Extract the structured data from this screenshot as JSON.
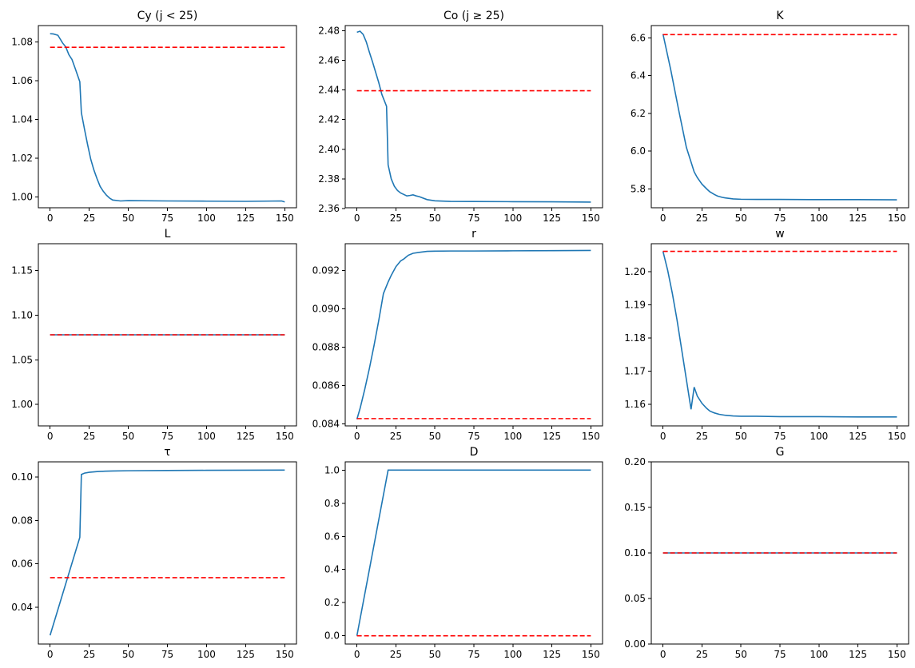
{
  "colors": {
    "series": "#1f77b4",
    "reference": "#ff0000",
    "axes": "#000000",
    "background": "#ffffff"
  },
  "chart_data": [
    {
      "type": "line",
      "title": "Cy (j < 25)",
      "xlim": [
        -7.5,
        157.5
      ],
      "ylim": [
        0.9945,
        1.0885
      ],
      "xticks": [
        0,
        25,
        50,
        75,
        100,
        125,
        150
      ],
      "xtick_labels": [
        "0",
        "25",
        "50",
        "75",
        "100",
        "125",
        "150"
      ],
      "yticks": [
        1.0,
        1.02,
        1.04,
        1.06,
        1.08
      ],
      "ytick_labels": [
        "1.00",
        "1.02",
        "1.04",
        "1.06",
        "1.08"
      ],
      "series": [
        {
          "values": {
            "x": [
              0,
              2,
              5,
              8,
              10,
              12,
              14,
              16,
              19,
              20,
              22,
              24,
              26,
              28,
              30,
              32,
              34,
              36,
              38,
              40,
              45,
              50,
              75,
              100,
              125,
              148,
              150
            ],
            "y": [
              1.0843,
              1.0842,
              1.0835,
              1.0795,
              1.0775,
              1.0735,
              1.071,
              1.0665,
              1.0595,
              1.0435,
              1.035,
              1.027,
              1.0195,
              1.014,
              1.0095,
              1.0055,
              1.003,
              1.001,
              0.9995,
              0.9985,
              0.998,
              0.9982,
              0.998,
              0.9979,
              0.9978,
              0.998,
              0.9975
            ]
          }
        },
        {
          "style": "dashed",
          "values": {
            "x": [
              0,
              150
            ],
            "y": [
              1.0773,
              1.0773
            ]
          }
        }
      ]
    },
    {
      "type": "line",
      "title": "Co (j  ≥  25)",
      "xlim": [
        -7.5,
        157.5
      ],
      "ylim": [
        2.3605,
        2.4835
      ],
      "xticks": [
        0,
        25,
        50,
        75,
        100,
        125,
        150
      ],
      "xtick_labels": [
        "0",
        "25",
        "50",
        "75",
        "100",
        "125",
        "150"
      ],
      "yticks": [
        2.36,
        2.38,
        2.4,
        2.42,
        2.44,
        2.46,
        2.48
      ],
      "ytick_labels": [
        "2.36",
        "2.38",
        "2.40",
        "2.42",
        "2.44",
        "2.46",
        "2.48"
      ],
      "series": [
        {
          "values": {
            "x": [
              0,
              2,
              4,
              6,
              8,
              10,
              12,
              14,
              16,
              19,
              20,
              22,
              24,
              26,
              28,
              30,
              32,
              34,
              36,
              38,
              40,
              45,
              50,
              60,
              75,
              100,
              125,
              150
            ],
            "y": [
              2.479,
              2.4797,
              2.4775,
              2.4725,
              2.4655,
              2.459,
              2.452,
              2.445,
              2.437,
              2.429,
              2.3895,
              2.38,
              2.375,
              2.3722,
              2.3705,
              2.3695,
              2.3685,
              2.3688,
              2.3692,
              2.3685,
              2.368,
              2.366,
              2.3652,
              2.3648,
              2.3647,
              2.3646,
              2.3645,
              2.3643
            ]
          }
        },
        {
          "style": "dashed",
          "values": {
            "x": [
              0,
              150
            ],
            "y": [
              2.4395,
              2.4395
            ]
          }
        }
      ]
    },
    {
      "type": "line",
      "title": "K",
      "xlim": [
        -7.5,
        157.5
      ],
      "ylim": [
        5.7,
        6.665
      ],
      "xticks": [
        0,
        25,
        50,
        75,
        100,
        125,
        150
      ],
      "xtick_labels": [
        "0",
        "25",
        "50",
        "75",
        "100",
        "125",
        "150"
      ],
      "yticks": [
        5.8,
        6.0,
        6.2,
        6.4,
        6.6
      ],
      "ytick_labels": [
        "5.8",
        "6.0",
        "6.2",
        "6.4",
        "6.6"
      ],
      "series": [
        {
          "values": {
            "x": [
              0,
              5,
              10,
              15,
              20,
              22,
              25,
              28,
              30,
              33,
              35,
              38,
              40,
              45,
              50,
              60,
              75,
              100,
              125,
              150
            ],
            "y": [
              6.62,
              6.43,
              6.22,
              6.02,
              5.89,
              5.86,
              5.825,
              5.8,
              5.785,
              5.77,
              5.762,
              5.755,
              5.752,
              5.747,
              5.745,
              5.744,
              5.744,
              5.743,
              5.743,
              5.742
            ]
          }
        },
        {
          "style": "dashed",
          "values": {
            "x": [
              0,
              150
            ],
            "y": [
              6.617,
              6.617
            ]
          }
        }
      ]
    },
    {
      "type": "line",
      "title": "L",
      "xlim": [
        -7.5,
        157.5
      ],
      "ylim": [
        0.976,
        1.18
      ],
      "xticks": [
        0,
        25,
        50,
        75,
        100,
        125,
        150
      ],
      "xtick_labels": [
        "0",
        "25",
        "50",
        "75",
        "100",
        "125",
        "150"
      ],
      "yticks": [
        1.0,
        1.05,
        1.1,
        1.15
      ],
      "ytick_labels": [
        "1.00",
        "1.05",
        "1.10",
        "1.15"
      ],
      "series": [
        {
          "values": {
            "x": [
              0,
              150
            ],
            "y": [
              1.078,
              1.078
            ]
          }
        },
        {
          "style": "dashed",
          "values": {
            "x": [
              0,
              150
            ],
            "y": [
              1.078,
              1.078
            ]
          }
        }
      ]
    },
    {
      "type": "line",
      "title": "r",
      "xlim": [
        -7.5,
        157.5
      ],
      "ylim": [
        0.0839,
        0.0934
      ],
      "xticks": [
        0,
        25,
        50,
        75,
        100,
        125,
        150
      ],
      "xtick_labels": [
        "0",
        "25",
        "50",
        "75",
        "100",
        "125",
        "150"
      ],
      "yticks": [
        0.084,
        0.086,
        0.088,
        0.09,
        0.092
      ],
      "ytick_labels": [
        "0.084",
        "0.086",
        "0.088",
        "0.090",
        "0.092"
      ],
      "series": [
        {
          "values": {
            "x": [
              0,
              2,
              5,
              8,
              11,
              14,
              17,
              20,
              22,
              25,
              28,
              30,
              33,
              36,
              40,
              45,
              50,
              60,
              75,
              100,
              125,
              150
            ],
            "y": [
              0.08425,
              0.0848,
              0.0858,
              0.0869,
              0.0881,
              0.0894,
              0.0908,
              0.0914,
              0.09175,
              0.0922,
              0.0925,
              0.0926,
              0.0928,
              0.0929,
              0.09295,
              0.093,
              0.09301,
              0.09302,
              0.09302,
              0.09303,
              0.09304,
              0.09305
            ]
          }
        },
        {
          "style": "dashed",
          "values": {
            "x": [
              0,
              150
            ],
            "y": [
              0.08428,
              0.08428
            ]
          }
        }
      ]
    },
    {
      "type": "line",
      "title": "w",
      "xlim": [
        -7.5,
        157.5
      ],
      "ylim": [
        1.1535,
        1.2085
      ],
      "xticks": [
        0,
        25,
        50,
        75,
        100,
        125,
        150
      ],
      "xtick_labels": [
        "0",
        "25",
        "50",
        "75",
        "100",
        "125",
        "150"
      ],
      "yticks": [
        1.16,
        1.17,
        1.18,
        1.19,
        1.2
      ],
      "ytick_labels": [
        "1.16",
        "1.17",
        "1.18",
        "1.19",
        "1.20"
      ],
      "series": [
        {
          "values": {
            "x": [
              0,
              3,
              6,
              9,
              12,
              15,
              18,
              20,
              22,
              25,
              28,
              30,
              33,
              36,
              40,
              45,
              50,
              60,
              75,
              100,
              125,
              150
            ],
            "y": [
              1.2062,
              1.2005,
              1.1935,
              1.1855,
              1.1765,
              1.1675,
              1.1585,
              1.1652,
              1.1625,
              1.1603,
              1.1588,
              1.158,
              1.1574,
              1.157,
              1.1567,
              1.1565,
              1.1564,
              1.1564,
              1.1563,
              1.1563,
              1.1562,
              1.1562
            ]
          }
        },
        {
          "style": "dashed",
          "values": {
            "x": [
              0,
              150
            ],
            "y": [
              1.2062,
              1.2062
            ]
          }
        }
      ]
    },
    {
      "type": "line",
      "title": "τ",
      "xlim": [
        -7.5,
        157.5
      ],
      "ylim": [
        0.023,
        0.107
      ],
      "xticks": [
        0,
        25,
        50,
        75,
        100,
        125,
        150
      ],
      "xtick_labels": [
        "0",
        "25",
        "50",
        "75",
        "100",
        "125",
        "150"
      ],
      "yticks": [
        0.04,
        0.06,
        0.08,
        0.1
      ],
      "ytick_labels": [
        "0.04",
        "0.06",
        "0.08",
        "0.10"
      ],
      "series": [
        {
          "values": {
            "x": [
              0,
              19,
              20,
              22,
              25,
              30,
              35,
              40,
              50,
              75,
              100,
              150
            ],
            "y": [
              0.027,
              0.0722,
              0.1012,
              0.1018,
              0.1022,
              0.1025,
              0.1027,
              0.1028,
              0.1029,
              0.103,
              0.1031,
              0.1032
            ]
          }
        },
        {
          "style": "dashed",
          "values": {
            "x": [
              0,
              150
            ],
            "y": [
              0.0536,
              0.0536
            ]
          }
        }
      ]
    },
    {
      "type": "line",
      "title": "D",
      "xlim": [
        -7.5,
        157.5
      ],
      "ylim": [
        -0.05,
        1.05
      ],
      "xticks": [
        0,
        25,
        50,
        75,
        100,
        125,
        150
      ],
      "xtick_labels": [
        "0",
        "25",
        "50",
        "75",
        "100",
        "125",
        "150"
      ],
      "yticks": [
        0.0,
        0.2,
        0.4,
        0.6,
        0.8,
        1.0
      ],
      "ytick_labels": [
        "0.0",
        "0.2",
        "0.4",
        "0.6",
        "0.8",
        "1.0"
      ],
      "series": [
        {
          "values": {
            "x": [
              0,
              20,
              150
            ],
            "y": [
              0.0,
              1.0,
              1.0
            ]
          }
        },
        {
          "style": "dashed",
          "values": {
            "x": [
              0,
              150
            ],
            "y": [
              0.0,
              0.0
            ]
          }
        }
      ]
    },
    {
      "type": "line",
      "title": "G",
      "xlim": [
        -7.5,
        157.5
      ],
      "ylim": [
        0.0,
        0.2
      ],
      "xticks": [
        0,
        25,
        50,
        75,
        100,
        125,
        150
      ],
      "xtick_labels": [
        "0",
        "25",
        "50",
        "75",
        "100",
        "125",
        "150"
      ],
      "yticks": [
        0.0,
        0.05,
        0.1,
        0.15,
        0.2
      ],
      "ytick_labels": [
        "0.00",
        "0.05",
        "0.10",
        "0.15",
        "0.20"
      ],
      "series": [
        {
          "values": {
            "x": [
              0,
              150
            ],
            "y": [
              0.1,
              0.1
            ]
          }
        },
        {
          "style": "dashed",
          "values": {
            "x": [
              0,
              150
            ],
            "y": [
              0.1,
              0.1
            ]
          }
        }
      ]
    }
  ]
}
